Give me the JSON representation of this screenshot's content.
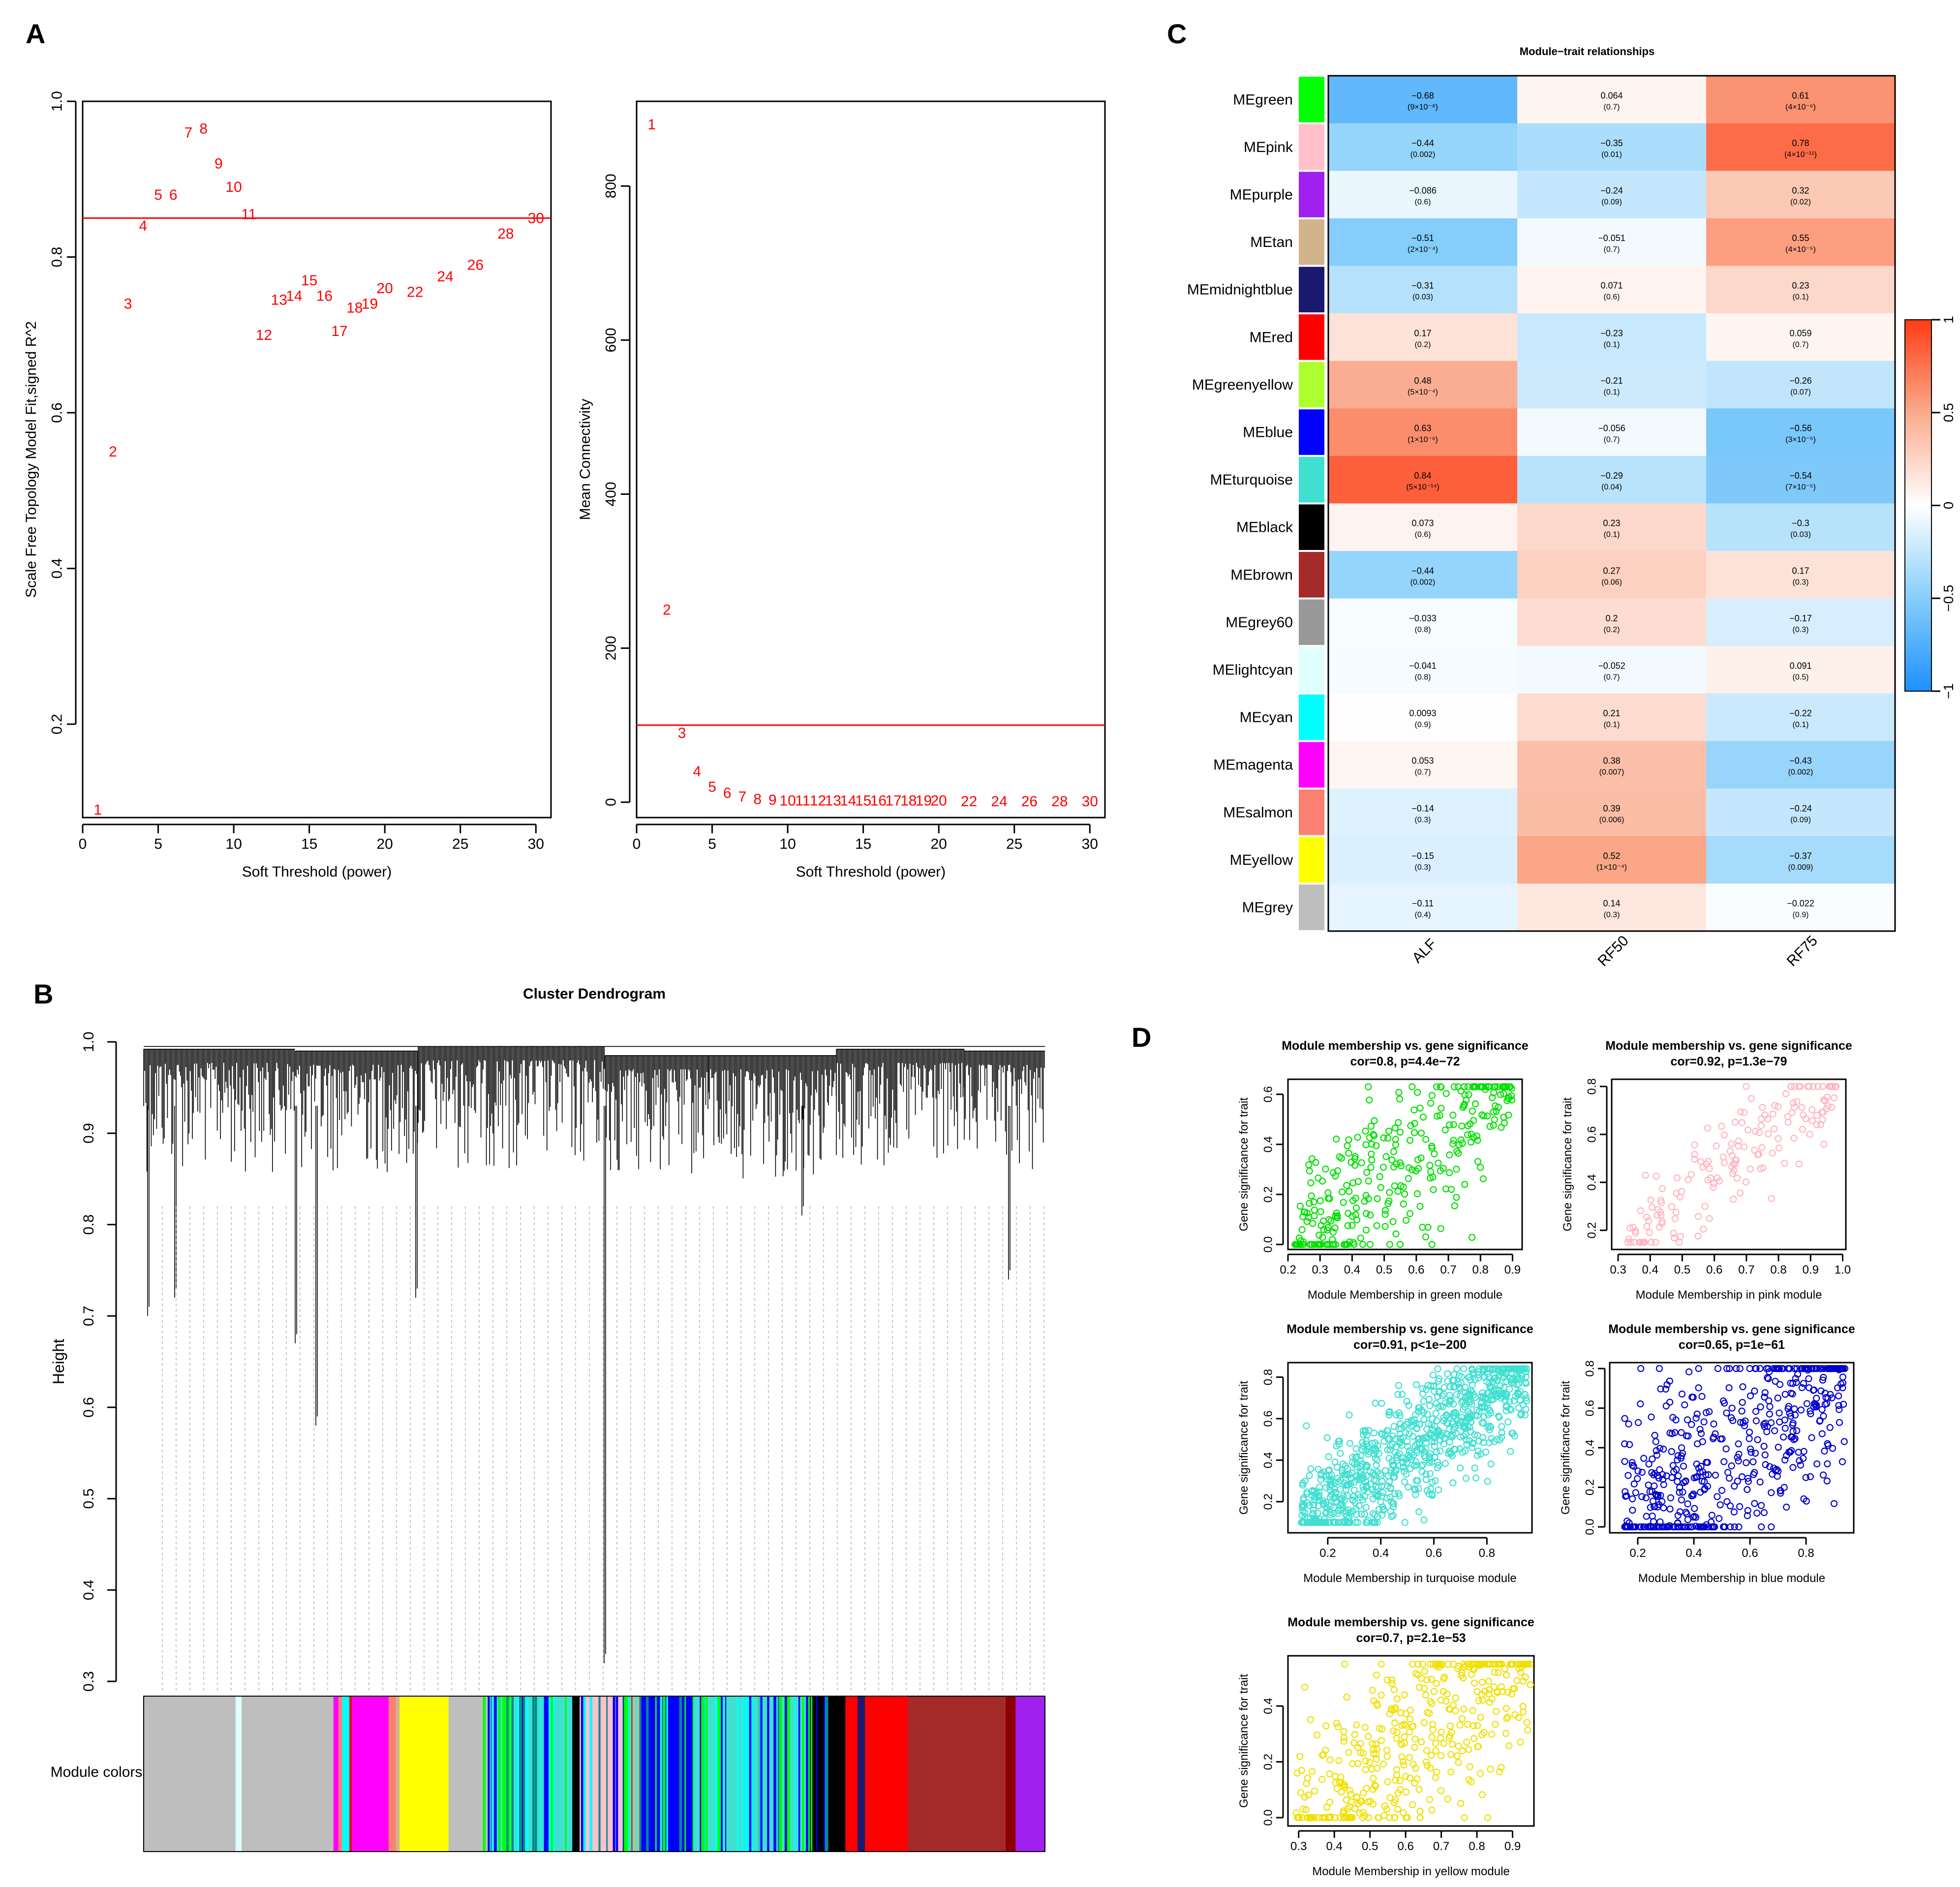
{
  "panel_labels": {
    "A": "A",
    "B": "B",
    "C": "C",
    "D": "D"
  },
  "colors": {
    "red": "#ff0000",
    "axis": "#000000",
    "gray": "#bebebe"
  },
  "chart_data": [
    {
      "id": "scale-free-fit",
      "type": "scatter",
      "xlabel": "Soft Threshold (power)",
      "ylabel": "Scale Free Topology Model Fit,signed R^2",
      "xlim": [
        0,
        31
      ],
      "ylim": [
        0.08,
        1.0
      ],
      "xticks": [
        "0",
        "5",
        "10",
        "15",
        "20",
        "25",
        "30"
      ],
      "yticks": [
        "0.2",
        "0.4",
        "0.6",
        "0.8",
        "1.0"
      ],
      "hline": 0.85,
      "points": [
        {
          "x": 1,
          "y": 0.09,
          "label": "1"
        },
        {
          "x": 2,
          "y": 0.55,
          "label": "2"
        },
        {
          "x": 3,
          "y": 0.74,
          "label": "3"
        },
        {
          "x": 4,
          "y": 0.84,
          "label": "4"
        },
        {
          "x": 5,
          "y": 0.88,
          "label": "5"
        },
        {
          "x": 6,
          "y": 0.88,
          "label": "6"
        },
        {
          "x": 7,
          "y": 0.96,
          "label": "7"
        },
        {
          "x": 8,
          "y": 0.965,
          "label": "8"
        },
        {
          "x": 9,
          "y": 0.92,
          "label": "9"
        },
        {
          "x": 10,
          "y": 0.89,
          "label": "10"
        },
        {
          "x": 11,
          "y": 0.855,
          "label": "11"
        },
        {
          "x": 12,
          "y": 0.7,
          "label": "12"
        },
        {
          "x": 13,
          "y": 0.745,
          "label": "13"
        },
        {
          "x": 14,
          "y": 0.75,
          "label": "14"
        },
        {
          "x": 15,
          "y": 0.77,
          "label": "15"
        },
        {
          "x": 16,
          "y": 0.75,
          "label": "16"
        },
        {
          "x": 17,
          "y": 0.705,
          "label": "17"
        },
        {
          "x": 18,
          "y": 0.735,
          "label": "18"
        },
        {
          "x": 19,
          "y": 0.74,
          "label": "19"
        },
        {
          "x": 20,
          "y": 0.76,
          "label": "20"
        },
        {
          "x": 22,
          "y": 0.755,
          "label": "22"
        },
        {
          "x": 24,
          "y": 0.775,
          "label": "24"
        },
        {
          "x": 26,
          "y": 0.79,
          "label": "26"
        },
        {
          "x": 28,
          "y": 0.83,
          "label": "28"
        },
        {
          "x": 30,
          "y": 0.85,
          "label": "30"
        }
      ]
    },
    {
      "id": "mean-connectivity",
      "type": "scatter",
      "xlabel": "Soft Threshold (power)",
      "ylabel": "Mean Connectivity",
      "xlim": [
        0,
        31
      ],
      "ylim": [
        -20,
        910
      ],
      "xticks": [
        "0",
        "5",
        "10",
        "15",
        "20",
        "25",
        "30"
      ],
      "yticks": [
        "0",
        "200",
        "400",
        "600",
        "800"
      ],
      "hline": 100,
      "points": [
        {
          "x": 1,
          "y": 880,
          "label": "1"
        },
        {
          "x": 2,
          "y": 250,
          "label": "2"
        },
        {
          "x": 3,
          "y": 90,
          "label": "3"
        },
        {
          "x": 4,
          "y": 40,
          "label": "4"
        },
        {
          "x": 5,
          "y": 20,
          "label": "5"
        },
        {
          "x": 6,
          "y": 12,
          "label": "6"
        },
        {
          "x": 7,
          "y": 7,
          "label": "7"
        },
        {
          "x": 8,
          "y": 4,
          "label": "8"
        },
        {
          "x": 9,
          "y": 3,
          "label": "9"
        },
        {
          "x": 10,
          "y": 2,
          "label": "10"
        },
        {
          "x": 11,
          "y": 2,
          "label": "11"
        },
        {
          "x": 12,
          "y": 2,
          "label": "12"
        },
        {
          "x": 13,
          "y": 2,
          "label": "13"
        },
        {
          "x": 14,
          "y": 2,
          "label": "14"
        },
        {
          "x": 15,
          "y": 2,
          "label": "15"
        },
        {
          "x": 16,
          "y": 2,
          "label": "16"
        },
        {
          "x": 17,
          "y": 2,
          "label": "17"
        },
        {
          "x": 18,
          "y": 2,
          "label": "18"
        },
        {
          "x": 19,
          "y": 2,
          "label": "19"
        },
        {
          "x": 20,
          "y": 2,
          "label": "20"
        },
        {
          "x": 22,
          "y": 1,
          "label": "22"
        },
        {
          "x": 24,
          "y": 1,
          "label": "24"
        },
        {
          "x": 26,
          "y": 1,
          "label": "26"
        },
        {
          "x": 28,
          "y": 1,
          "label": "28"
        },
        {
          "x": 30,
          "y": 1,
          "label": "30"
        }
      ]
    },
    {
      "id": "cluster-dendrogram",
      "type": "dendrogram",
      "title": "Cluster Dendrogram",
      "ylabel": "Height",
      "ylim": [
        0.3,
        1.0
      ],
      "yticks": [
        "0.3",
        "0.4",
        "0.5",
        "0.6",
        "0.7",
        "0.8",
        "0.9",
        "1.0"
      ],
      "module_colors_label": "Module colors",
      "color_bar": [
        {
          "color": "#bebebe",
          "w": 7.5
        },
        {
          "color": "#e0ffff",
          "w": 0.5
        },
        {
          "color": "#bebebe",
          "w": 7.5
        },
        {
          "color": "#ff00ff",
          "w": 0.4
        },
        {
          "color": "#fa8072",
          "w": 0.3
        },
        {
          "color": "#00ffff",
          "w": 0.6
        },
        {
          "color": "#ff0000",
          "w": 0.2
        },
        {
          "color": "#ff00ff",
          "w": 3
        },
        {
          "color": "#fa8072",
          "w": 0.6
        },
        {
          "color": "#d2b48c",
          "w": 0.3
        },
        {
          "color": "#ffff00",
          "w": 4
        },
        {
          "color": "#bebebe",
          "w": 3.2
        },
        {
          "color": "#0000ff",
          "w": 0.3
        },
        {
          "color": "#40e0d0",
          "w": 0.9
        },
        {
          "color": "#00ff00",
          "w": 0.3
        },
        {
          "color": "#40e0d0",
          "w": 1.1
        },
        {
          "color": "#0000ff",
          "w": 0.3
        },
        {
          "color": "#40e0d0",
          "w": 2.2
        },
        {
          "color": "#00ff00",
          "w": 0.3
        },
        {
          "color": "#40e0d0",
          "w": 1.5
        },
        {
          "color": "#000000",
          "w": 0.6
        },
        {
          "color": "#ffc0cb",
          "w": 3.5
        },
        {
          "color": "#00ff00",
          "w": 0.6
        },
        {
          "color": "#d2b48c",
          "w": 0.8
        },
        {
          "color": "#0000ff",
          "w": 4.2
        },
        {
          "color": "#40e0d0",
          "w": 2
        },
        {
          "color": "#00ff00",
          "w": 0.4
        },
        {
          "color": "#40e0d0",
          "w": 2
        },
        {
          "color": "#00ffff",
          "w": 0.7
        },
        {
          "color": "#40e0d0",
          "w": 2.5
        },
        {
          "color": "#00ff00",
          "w": 0.5
        },
        {
          "color": "#40e0d0",
          "w": 1.5
        },
        {
          "color": "#000000",
          "w": 3
        },
        {
          "color": "#ff0000",
          "w": 1
        },
        {
          "color": "#191970",
          "w": 0.6
        },
        {
          "color": "#ff0000",
          "w": 3.5
        },
        {
          "color": "#a52a2a",
          "w": 8
        },
        {
          "color": "#8b0000",
          "w": 0.8
        },
        {
          "color": "#a020f0",
          "w": 2.4
        }
      ]
    },
    {
      "id": "module-trait-heatmap",
      "type": "heatmap",
      "title": "Module−trait relationships",
      "columns": [
        "ALF",
        "RF50",
        "RF75"
      ],
      "colorbar_ticks": [
        "1",
        "0.5",
        "0",
        "−0.5",
        "−1"
      ],
      "rows": [
        {
          "name": "MEgreen",
          "color": "#00ff00",
          "values": [
            -0.68,
            0.064,
            0.61
          ],
          "labels": [
            "−0.68",
            "0.064",
            "0.61"
          ],
          "p": [
            "(9×10⁻⁸)",
            "(0.7)",
            "(4×10⁻⁶)"
          ]
        },
        {
          "name": "MEpink",
          "color": "#ffc0cb",
          "values": [
            -0.44,
            -0.35,
            0.78
          ],
          "labels": [
            "−0.44",
            "−0.35",
            "0.78"
          ],
          "p": [
            "(0.002)",
            "(0.01)",
            "(4×10⁻¹¹)"
          ]
        },
        {
          "name": "MEpurple",
          "color": "#a020f0",
          "values": [
            -0.086,
            -0.24,
            0.32
          ],
          "labels": [
            "−0.086",
            "−0.24",
            "0.32"
          ],
          "p": [
            "(0.6)",
            "(0.09)",
            "(0.02)"
          ]
        },
        {
          "name": "MEtan",
          "color": "#d2b48c",
          "values": [
            -0.51,
            -0.051,
            0.55
          ],
          "labels": [
            "−0.51",
            "−0.051",
            "0.55"
          ],
          "p": [
            "(2×10⁻⁴)",
            "(0.7)",
            "(4×10⁻⁵)"
          ]
        },
        {
          "name": "MEmidnightblue",
          "color": "#191970",
          "values": [
            -0.31,
            0.071,
            0.23
          ],
          "labels": [
            "−0.31",
            "0.071",
            "0.23"
          ],
          "p": [
            "(0.03)",
            "(0.6)",
            "(0.1)"
          ]
        },
        {
          "name": "MEred",
          "color": "#ff0000",
          "values": [
            0.17,
            -0.23,
            0.059
          ],
          "labels": [
            "0.17",
            "−0.23",
            "0.059"
          ],
          "p": [
            "(0.2)",
            "(0.1)",
            "(0.7)"
          ]
        },
        {
          "name": "MEgreenyellow",
          "color": "#adff2f",
          "values": [
            0.48,
            -0.21,
            -0.26
          ],
          "labels": [
            "0.48",
            "−0.21",
            "−0.26"
          ],
          "p": [
            "(5×10⁻⁴)",
            "(0.1)",
            "(0.07)"
          ]
        },
        {
          "name": "MEblue",
          "color": "#0000ff",
          "values": [
            0.63,
            -0.056,
            -0.56
          ],
          "labels": [
            "0.63",
            "−0.056",
            "−0.56"
          ],
          "p": [
            "(1×10⁻⁶)",
            "(0.7)",
            "(3×10⁻⁵)"
          ]
        },
        {
          "name": "MEturquoise",
          "color": "#40e0d0",
          "values": [
            0.84,
            -0.29,
            -0.54
          ],
          "labels": [
            "0.84",
            "−0.29",
            "−0.54"
          ],
          "p": [
            "(5×10⁻¹⁴)",
            "(0.04)",
            "(7×10⁻⁵)"
          ]
        },
        {
          "name": "MEblack",
          "color": "#000000",
          "values": [
            0.073,
            0.23,
            -0.3
          ],
          "labels": [
            "0.073",
            "0.23",
            "−0.3"
          ],
          "p": [
            "(0.6)",
            "(0.1)",
            "(0.03)"
          ]
        },
        {
          "name": "MEbrown",
          "color": "#a52a2a",
          "values": [
            -0.44,
            0.27,
            0.17
          ],
          "labels": [
            "−0.44",
            "0.27",
            "0.17"
          ],
          "p": [
            "(0.002)",
            "(0.06)",
            "(0.3)"
          ]
        },
        {
          "name": "MEgrey60",
          "color": "#999999",
          "values": [
            -0.033,
            0.2,
            -0.17
          ],
          "labels": [
            "−0.033",
            "0.2",
            "−0.17"
          ],
          "p": [
            "(0.8)",
            "(0.2)",
            "(0.3)"
          ]
        },
        {
          "name": "MElightcyan",
          "color": "#e0ffff",
          "values": [
            -0.041,
            -0.052,
            0.091
          ],
          "labels": [
            "−0.041",
            "−0.052",
            "0.091"
          ],
          "p": [
            "(0.8)",
            "(0.7)",
            "(0.5)"
          ]
        },
        {
          "name": "MEcyan",
          "color": "#00ffff",
          "values": [
            0.0093,
            0.21,
            -0.22
          ],
          "labels": [
            "0.0093",
            "0.21",
            "−0.22"
          ],
          "p": [
            "(0.9)",
            "(0.1)",
            "(0.1)"
          ]
        },
        {
          "name": "MEmagenta",
          "color": "#ff00ff",
          "values": [
            0.053,
            0.38,
            -0.43
          ],
          "labels": [
            "0.053",
            "0.38",
            "−0.43"
          ],
          "p": [
            "(0.7)",
            "(0.007)",
            "(0.002)"
          ]
        },
        {
          "name": "MEsalmon",
          "color": "#fa8072",
          "values": [
            -0.14,
            0.39,
            -0.24
          ],
          "labels": [
            "−0.14",
            "0.39",
            "−0.24"
          ],
          "p": [
            "(0.3)",
            "(0.006)",
            "(0.09)"
          ]
        },
        {
          "name": "MEyellow",
          "color": "#ffff00",
          "values": [
            -0.15,
            0.52,
            -0.37
          ],
          "labels": [
            "−0.15",
            "0.52",
            "−0.37"
          ],
          "p": [
            "(0.3)",
            "(1×10⁻⁴)",
            "(0.009)"
          ]
        },
        {
          "name": "MEgrey",
          "color": "#bebebe",
          "values": [
            -0.11,
            0.14,
            -0.022
          ],
          "labels": [
            "−0.11",
            "0.14",
            "−0.022"
          ],
          "p": [
            "(0.4)",
            "(0.3)",
            "(0.9)"
          ]
        }
      ]
    },
    {
      "id": "mm-gs-green",
      "type": "scatter",
      "title": "Module membership vs. gene significance",
      "subtitle": "cor=0.8, p=4.4e−72",
      "xlabel": "Module Membership in green module",
      "ylabel": "Gene significance for trait",
      "color": "#00e000",
      "xlim": [
        0.2,
        0.93
      ],
      "ylim": [
        -0.02,
        0.66
      ],
      "xticks": [
        "0.2",
        "0.3",
        "0.4",
        "0.5",
        "0.6",
        "0.7",
        "0.8",
        "0.9"
      ],
      "yticks": [
        "0.0",
        "0.2",
        "0.4",
        "0.6"
      ],
      "n": 320,
      "cor": 0.8,
      "x_range": [
        0.22,
        0.9
      ],
      "y_range": [
        0.0,
        0.63
      ]
    },
    {
      "id": "mm-gs-pink",
      "type": "scatter",
      "title": "Module membership vs. gene significance",
      "subtitle": "cor=0.92, p=1.3e−79",
      "xlabel": "Module Membership in pink module",
      "ylabel": "Gene significance for trait",
      "color": "#ffb6c1",
      "xlim": [
        0.28,
        1.01
      ],
      "ylim": [
        0.12,
        0.83
      ],
      "xticks": [
        "0.3",
        "0.4",
        "0.5",
        "0.6",
        "0.7",
        "0.8",
        "0.9",
        "1.0"
      ],
      "yticks": [
        "0.2",
        "0.4",
        "0.6",
        "0.8"
      ],
      "n": 170,
      "cor": 0.92,
      "x_range": [
        0.33,
        0.98
      ],
      "y_range": [
        0.15,
        0.8
      ]
    },
    {
      "id": "mm-gs-turquoise",
      "type": "scatter",
      "title": "Module membership vs. gene significance",
      "subtitle": "cor=0.91, p<1e−200",
      "xlabel": "Module Membership in turquoise module",
      "ylabel": "Gene significance for trait",
      "color": "#40e0d0",
      "xlim": [
        0.05,
        0.97
      ],
      "ylim": [
        0.05,
        0.87
      ],
      "xticks": [
        "0.2",
        "0.4",
        "0.6",
        "0.8"
      ],
      "yticks": [
        "0.2",
        "0.4",
        "0.6",
        "0.8"
      ],
      "n": 900,
      "cor": 0.91,
      "x_range": [
        0.1,
        0.95
      ],
      "y_range": [
        0.1,
        0.84
      ]
    },
    {
      "id": "mm-gs-blue",
      "type": "scatter",
      "title": "Module membership vs. gene significance",
      "subtitle": "cor=0.65, p=1e−61",
      "xlabel": "Module Membership in blue module",
      "ylabel": "Gene significance for trait",
      "color": "#0000cd",
      "xlim": [
        0.1,
        0.97
      ],
      "ylim": [
        -0.03,
        0.83
      ],
      "xticks": [
        "0.2",
        "0.4",
        "0.6",
        "0.8"
      ],
      "yticks": [
        "0.0",
        "0.2",
        "0.4",
        "0.6",
        "0.8"
      ],
      "n": 520,
      "cor": 0.65,
      "x_range": [
        0.15,
        0.94
      ],
      "y_range": [
        0.0,
        0.8
      ]
    },
    {
      "id": "mm-gs-yellow",
      "type": "scatter",
      "title": "Module membership vs. gene significance",
      "subtitle": "cor=0.7, p=2.1e−53",
      "xlabel": "Module Membership in yellow module",
      "ylabel": "Gene significance for trait",
      "color": "#f0e000",
      "xlim": [
        0.27,
        0.96
      ],
      "ylim": [
        -0.03,
        0.58
      ],
      "xticks": [
        "0.3",
        "0.4",
        "0.5",
        "0.6",
        "0.7",
        "0.8",
        "0.9"
      ],
      "yticks": [
        "0.0",
        "0.2",
        "0.4"
      ],
      "n": 420,
      "cor": 0.7,
      "x_range": [
        0.29,
        0.95
      ],
      "y_range": [
        0.0,
        0.55
      ]
    }
  ]
}
